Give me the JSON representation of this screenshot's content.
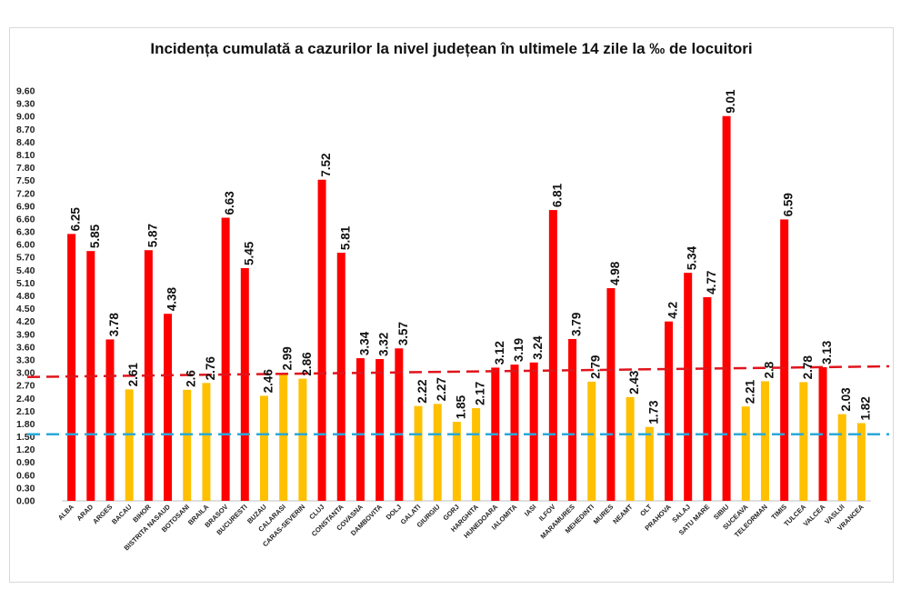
{
  "chart_data": {
    "type": "bar",
    "title": "Incidența cumulată a cazurilor la nivel județean în ultimele 14 zile la ‰ de locuitori",
    "xlabel": "",
    "ylabel": "",
    "ylim": [
      0,
      9.6
    ],
    "yticks": [
      "0.00",
      "0.30",
      "0.60",
      "0.90",
      "1.20",
      "1.50",
      "1.80",
      "2.10",
      "2.40",
      "2.70",
      "3.00",
      "3.30",
      "3.60",
      "3.90",
      "4.20",
      "4.50",
      "4.80",
      "5.10",
      "5.40",
      "5.70",
      "6.00",
      "6.30",
      "6.60",
      "6.90",
      "7.20",
      "7.50",
      "7.80",
      "8.10",
      "8.40",
      "8.70",
      "9.00",
      "9.30",
      "9.60"
    ],
    "categories": [
      "ALBA",
      "ARAD",
      "ARGES",
      "BACAU",
      "BIHOR",
      "BISTRITA NASAUD",
      "BOTOSANI",
      "BRAILA",
      "BRASOV",
      "BUCURESTI",
      "BUZAU",
      "CALARASI",
      "CARAS-SEVERIN",
      "CLUJ",
      "CONSTANTA",
      "COVASNA",
      "DAMBOVITA",
      "DOLJ",
      "GALATI",
      "GIURGIU",
      "GORJ",
      "HARGHITA",
      "HUNEDOARA",
      "IALOMITA",
      "IASI",
      "ILFOV",
      "MARAMURES",
      "MEHEDINTI",
      "MURES",
      "NEAMT",
      "OLT",
      "PRAHOVA",
      "SALAJ",
      "SATU MARE",
      "SIBIU",
      "SUCEAVA",
      "TELEORMAN",
      "TIMIS",
      "TULCEA",
      "VALCEA",
      "VASLUI",
      "VRANCEA"
    ],
    "values": [
      6.25,
      5.85,
      3.78,
      2.61,
      5.87,
      4.38,
      2.6,
      2.76,
      6.63,
      5.45,
      2.46,
      2.99,
      2.86,
      7.52,
      5.81,
      3.34,
      3.32,
      3.57,
      2.22,
      2.27,
      1.85,
      2.17,
      3.12,
      3.19,
      3.24,
      6.81,
      3.79,
      2.79,
      4.98,
      2.43,
      1.73,
      4.2,
      5.34,
      4.77,
      9.01,
      2.21,
      2.8,
      6.59,
      2.78,
      3.13,
      2.03,
      1.82
    ],
    "data_labels": [
      "6.25",
      "5.85",
      "3.78",
      "2.61",
      "5.87",
      "4.38",
      "2.6",
      "2.76",
      "6.63",
      "5.45",
      "2.46",
      "2.99",
      "2.86",
      "7.52",
      "5.81",
      "3.34",
      "3.32",
      "3.57",
      "2.22",
      "2.27",
      "1.85",
      "2.17",
      "3.12",
      "3.19",
      "3.24",
      "6.81",
      "3.79",
      "2.79",
      "4.98",
      "2.43",
      "1.73",
      "4.2",
      "5.34",
      "4.77",
      "9.01",
      "2.21",
      "2.8",
      "6.59",
      "2.78",
      "3.13",
      "2.03",
      "1.82"
    ],
    "threshold_high": 3.0,
    "threshold_low": 1.5,
    "reference_lines": [
      {
        "style": "dashed",
        "color": "#e0141c",
        "y_start": 2.9,
        "y_end": 3.15
      },
      {
        "style": "dashed",
        "color": "#2aa8d8",
        "y_start": 1.56,
        "y_end": 1.56
      }
    ],
    "colors": {
      "high": "#ff0000",
      "low": "#ffc000"
    },
    "grid": false,
    "legend": "none"
  }
}
